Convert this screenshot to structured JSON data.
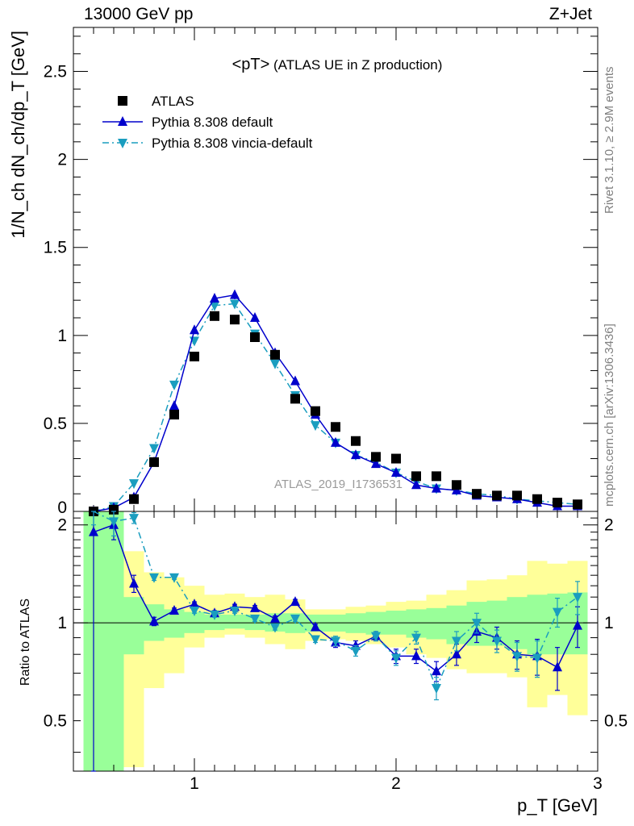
{
  "header": {
    "left": "13000 GeV pp",
    "right": "Z+Jet"
  },
  "side": {
    "top": "Rivet 3.1.10, ≥ 2.9M events",
    "bottom": "mcplots.cern.ch [arXiv:1306.3436]"
  },
  "title": "<pT>",
  "title_sub": "(ATLAS UE in Z production)",
  "watermark": "ATLAS_2019_I1736531",
  "legend": [
    {
      "label": "ATLAS",
      "marker": "square",
      "color": "#000000"
    },
    {
      "label": "Pythia 8.308 default",
      "marker": "triangle-up",
      "color": "#0000cc"
    },
    {
      "label": "Pythia 8.308 vincia-default",
      "marker": "triangle-down",
      "color": "#1a9dbf"
    }
  ],
  "colors": {
    "band_outer": "#ffff99",
    "band_inner": "#99ff99"
  },
  "chart_data": {
    "type": "line",
    "x": [
      0.5,
      0.6,
      0.7,
      0.8,
      0.9,
      1.0,
      1.1,
      1.2,
      1.3,
      1.4,
      1.5,
      1.6,
      1.7,
      1.8,
      1.9,
      2.0,
      2.1,
      2.2,
      2.3,
      2.4,
      2.5,
      2.6,
      2.7,
      2.8,
      2.9
    ],
    "xlim": [
      0.4,
      3.0
    ],
    "xticks": [
      "1",
      "2",
      "3"
    ],
    "xlabel": "p_T [GeV]",
    "main": {
      "ylabel": "1/N_ch dN_ch/dp_T [GeV]",
      "ylim": [
        0,
        2.75
      ],
      "yticks": [
        "0",
        "0.5",
        "1",
        "1.5",
        "2",
        "2.5"
      ],
      "series": [
        {
          "name": "ATLAS",
          "values": [
            0.0,
            0.01,
            0.07,
            0.28,
            0.55,
            0.88,
            1.11,
            1.09,
            0.99,
            0.89,
            0.64,
            0.57,
            0.48,
            0.4,
            0.31,
            0.3,
            0.2,
            0.2,
            0.15,
            0.1,
            0.09,
            0.09,
            0.07,
            0.05,
            0.04
          ]
        },
        {
          "name": "Pythia 8.308 default",
          "values": [
            0.0,
            0.02,
            0.08,
            0.28,
            0.6,
            1.03,
            1.21,
            1.23,
            1.1,
            0.9,
            0.74,
            0.55,
            0.39,
            0.32,
            0.27,
            0.22,
            0.15,
            0.13,
            0.12,
            0.09,
            0.08,
            0.07,
            0.05,
            0.03,
            0.03
          ]
        },
        {
          "name": "Pythia 8.308 vincia-default",
          "values": [
            0.0,
            0.03,
            0.16,
            0.36,
            0.72,
            0.97,
            1.17,
            1.18,
            1.01,
            0.84,
            0.66,
            0.49,
            0.39,
            0.32,
            0.28,
            0.22,
            0.17,
            0.13,
            0.12,
            0.1,
            0.09,
            0.07,
            0.06,
            0.05,
            0.04
          ]
        }
      ]
    },
    "ratio": {
      "ylabel": "Ratio to ATLAS",
      "ylim": [
        0.35,
        2.2
      ],
      "yticks": [
        "0.5",
        "1",
        "2"
      ],
      "series": [
        {
          "name": "Pythia 8.308 default",
          "values": [
            1.9,
            2.0,
            1.32,
            1.01,
            1.09,
            1.14,
            1.07,
            1.12,
            1.11,
            1.03,
            1.16,
            0.97,
            0.87,
            0.85,
            0.91,
            0.79,
            0.79,
            0.71,
            0.8,
            0.94,
            0.9,
            0.8,
            0.79,
            0.73,
            0.98
          ],
          "err": [
            1.6,
            0.2,
            0.08,
            0.03,
            0.02,
            0.02,
            0.02,
            0.02,
            0.02,
            0.02,
            0.02,
            0.02,
            0.03,
            0.03,
            0.03,
            0.04,
            0.04,
            0.05,
            0.06,
            0.07,
            0.07,
            0.08,
            0.1,
            0.11,
            0.14
          ]
        },
        {
          "name": "Pythia 8.308 vincia-default",
          "values": [
            2.3,
            2.05,
            2.1,
            1.38,
            1.38,
            1.09,
            1.06,
            1.09,
            1.03,
            0.97,
            1.03,
            0.89,
            0.88,
            0.82,
            0.91,
            0.78,
            0.9,
            0.63,
            0.88,
            1.0,
            0.88,
            0.79,
            0.78,
            1.08,
            1.2
          ],
          "err": [
            0.3,
            0.2,
            0.08,
            0.03,
            0.02,
            0.02,
            0.02,
            0.02,
            0.02,
            0.02,
            0.02,
            0.02,
            0.03,
            0.03,
            0.03,
            0.04,
            0.04,
            0.05,
            0.06,
            0.07,
            0.07,
            0.08,
            0.1,
            0.11,
            0.14
          ]
        }
      ],
      "band_outer": [
        [
          0.25,
          2.3
        ],
        [
          0.25,
          2.3
        ],
        [
          0.36,
          1.66
        ],
        [
          0.63,
          1.43
        ],
        [
          0.7,
          1.38
        ],
        [
          0.84,
          1.3
        ],
        [
          0.9,
          1.22
        ],
        [
          0.92,
          1.23
        ],
        [
          0.9,
          1.2
        ],
        [
          0.86,
          1.22
        ],
        [
          0.83,
          1.18
        ],
        [
          0.88,
          1.1
        ],
        [
          0.89,
          1.1
        ],
        [
          0.88,
          1.12
        ],
        [
          0.86,
          1.13
        ],
        [
          0.84,
          1.16
        ],
        [
          0.8,
          1.17
        ],
        [
          0.78,
          1.22
        ],
        [
          0.72,
          1.26
        ],
        [
          0.7,
          1.35
        ],
        [
          0.7,
          1.36
        ],
        [
          0.68,
          1.4
        ],
        [
          0.55,
          1.55
        ],
        [
          0.6,
          1.52
        ],
        [
          0.52,
          1.55
        ]
      ],
      "band_inner": [
        [
          0.25,
          2.3
        ],
        [
          0.25,
          2.3
        ],
        [
          0.8,
          1.2
        ],
        [
          0.88,
          1.14
        ],
        [
          0.9,
          1.1
        ],
        [
          0.93,
          1.08
        ],
        [
          0.95,
          1.06
        ],
        [
          0.96,
          1.06
        ],
        [
          0.95,
          1.06
        ],
        [
          0.94,
          1.07
        ],
        [
          0.93,
          1.07
        ],
        [
          0.94,
          1.06
        ],
        [
          0.94,
          1.06
        ],
        [
          0.93,
          1.07
        ],
        [
          0.92,
          1.08
        ],
        [
          0.92,
          1.09
        ],
        [
          0.9,
          1.1
        ],
        [
          0.89,
          1.11
        ],
        [
          0.86,
          1.13
        ],
        [
          0.85,
          1.16
        ],
        [
          0.85,
          1.17
        ],
        [
          0.83,
          1.2
        ],
        [
          0.8,
          1.22
        ],
        [
          0.8,
          1.23
        ],
        [
          0.8,
          1.24
        ]
      ]
    }
  }
}
